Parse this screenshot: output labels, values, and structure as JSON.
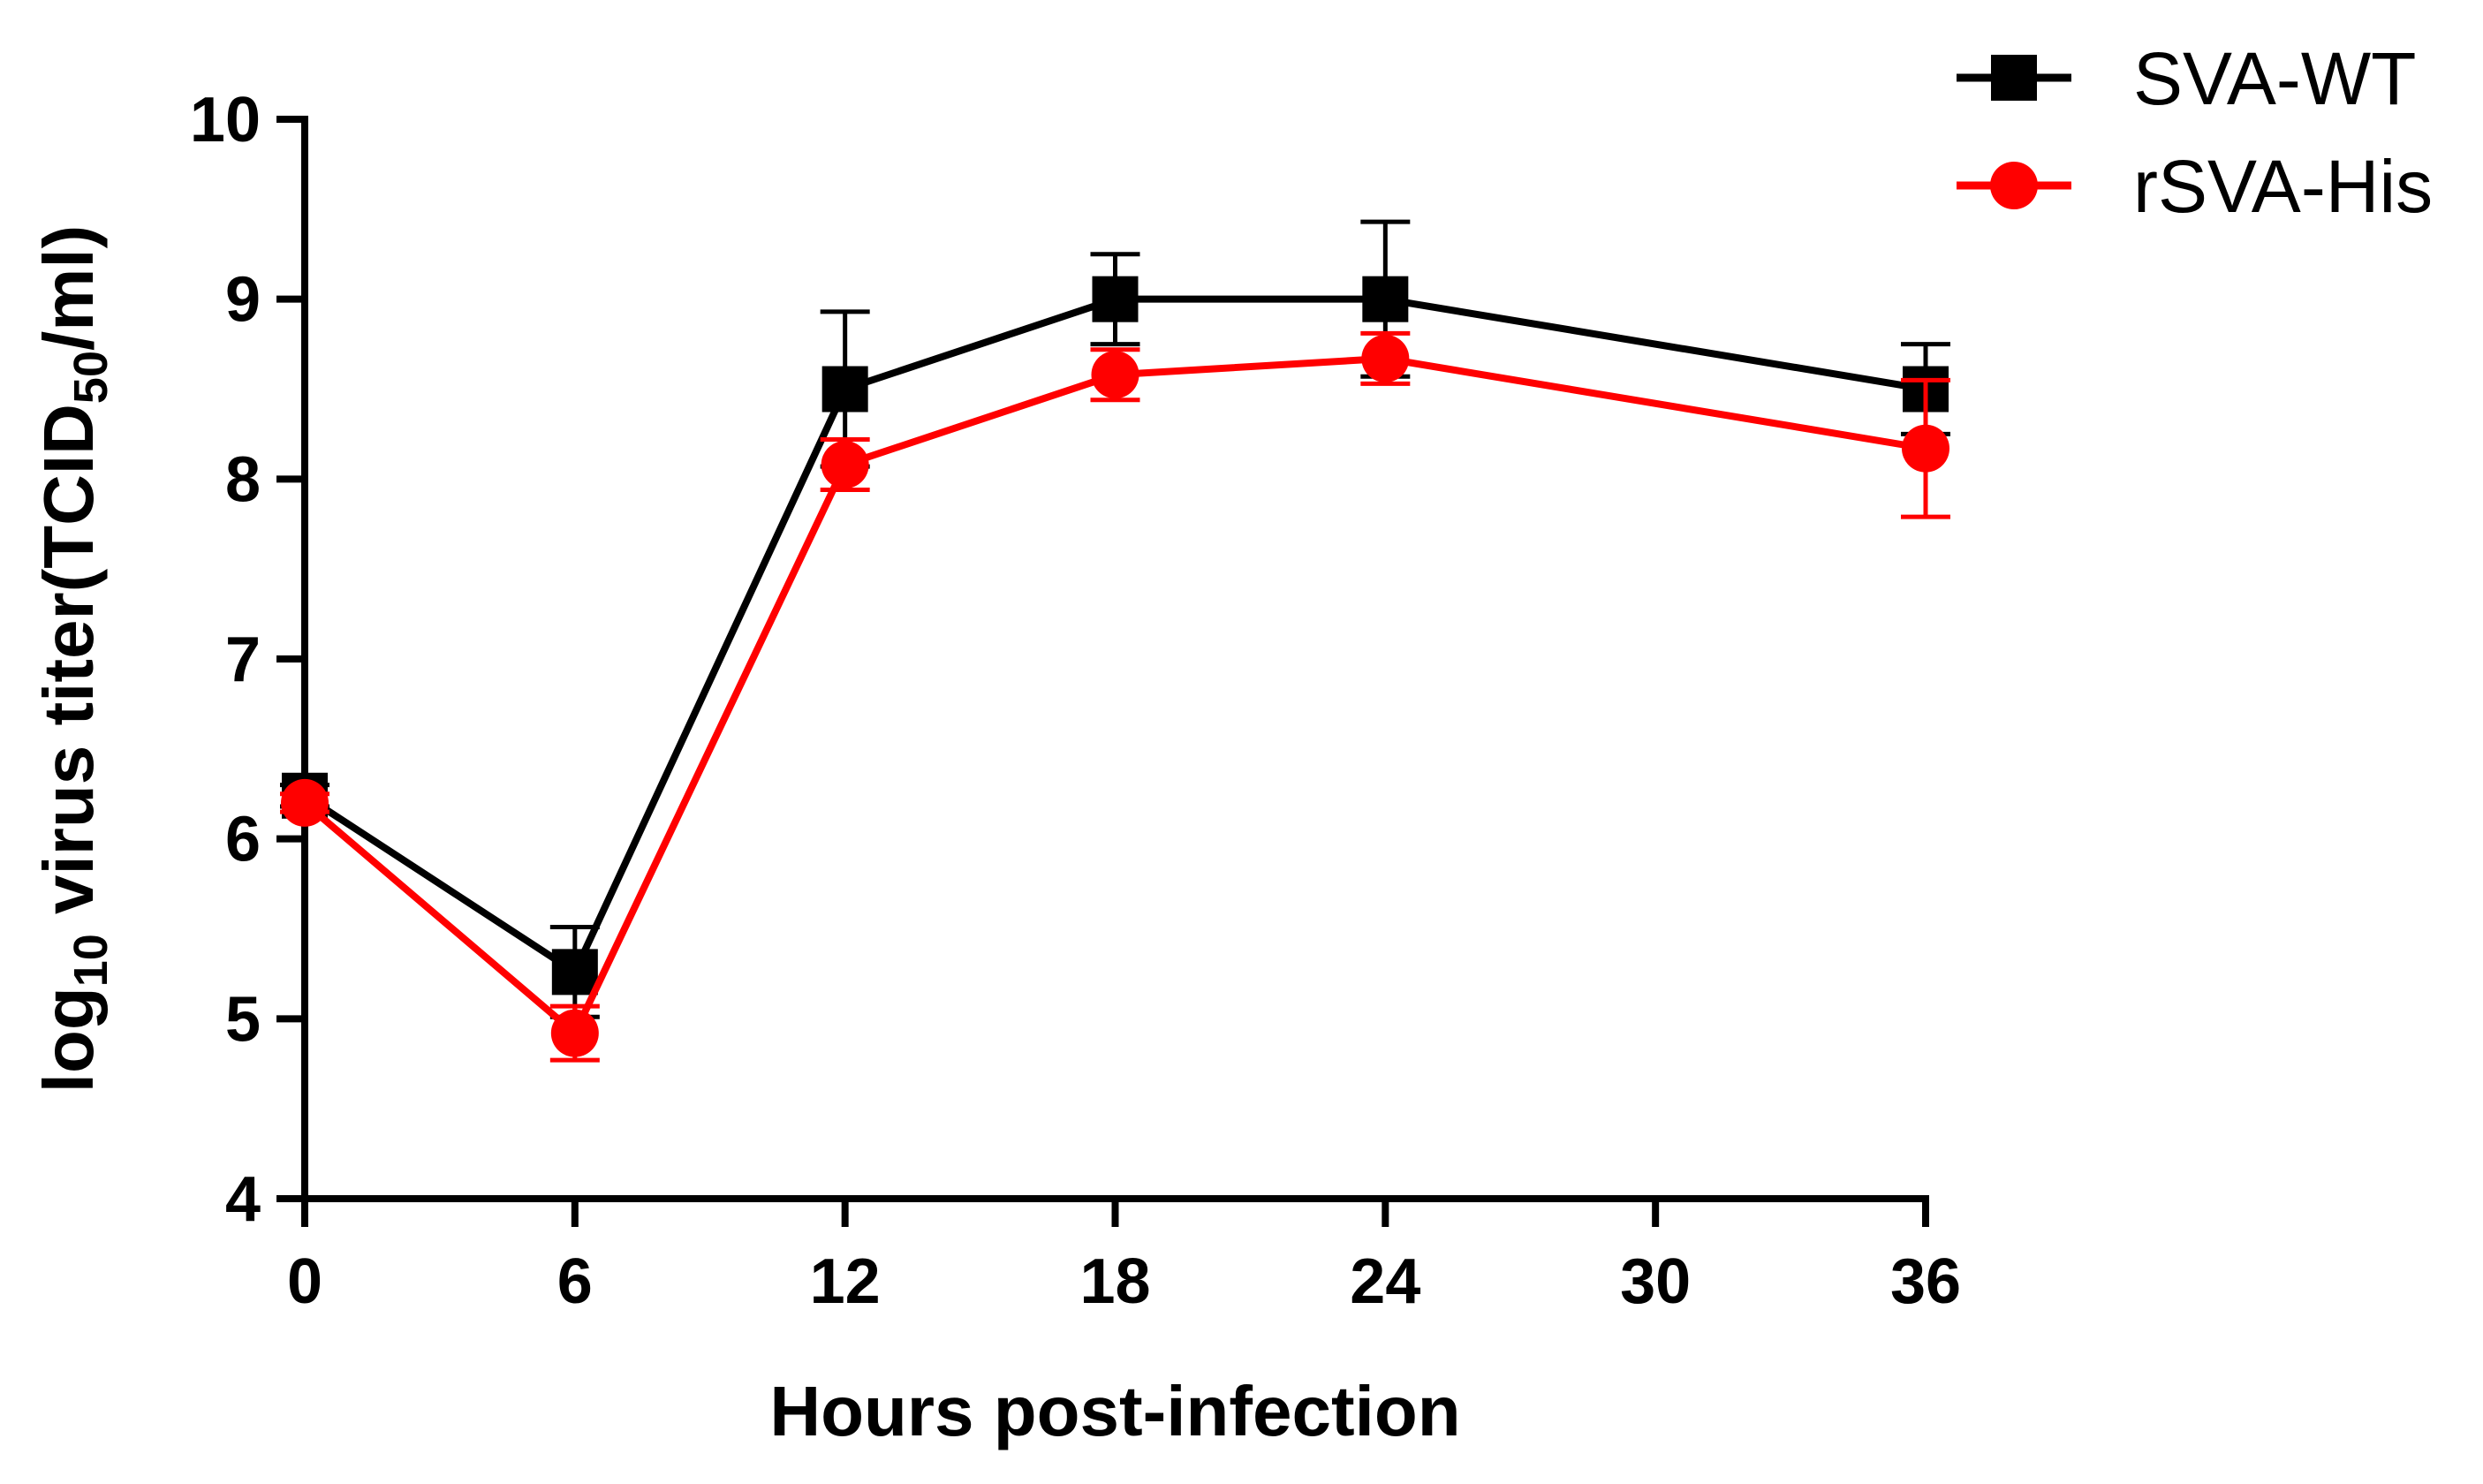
{
  "chart_data": {
    "type": "line",
    "title": "",
    "xlabel": "Hours post-infection",
    "ylabel": {
      "prefix": "log",
      "prefix_sub": "10",
      "middle": " virus titer(TCID",
      "middle_sub": "50",
      "suffix": "/ml)"
    },
    "xlim": [
      0,
      36
    ],
    "ylim": [
      4,
      10
    ],
    "xticks": [
      0,
      6,
      12,
      18,
      24,
      30,
      36
    ],
    "xtick_labels": [
      "0",
      "6",
      "12",
      "18",
      "24",
      "30",
      "36"
    ],
    "yticks": [
      4,
      5,
      6,
      7,
      8,
      9,
      10
    ],
    "ytick_labels": [
      "4",
      "5",
      "6",
      "7",
      "8",
      "9",
      "10"
    ],
    "grid": false,
    "legend_position": "top-right",
    "x": [
      0,
      6,
      12,
      18,
      24,
      36
    ],
    "series": [
      {
        "name": "SVA-WT",
        "color": "#000000",
        "marker": "square",
        "values": [
          6.24,
          5.26,
          8.5,
          9.0,
          9.0,
          8.5
        ],
        "error": [
          0.06,
          0.25,
          0.43,
          0.25,
          0.43,
          0.25
        ]
      },
      {
        "name": "rSVA-His",
        "color": "#ff0000",
        "marker": "circle",
        "values": [
          6.2,
          4.92,
          8.08,
          8.58,
          8.67,
          8.17
        ],
        "error": [
          0.05,
          0.15,
          0.14,
          0.14,
          0.14,
          0.38
        ]
      }
    ]
  }
}
